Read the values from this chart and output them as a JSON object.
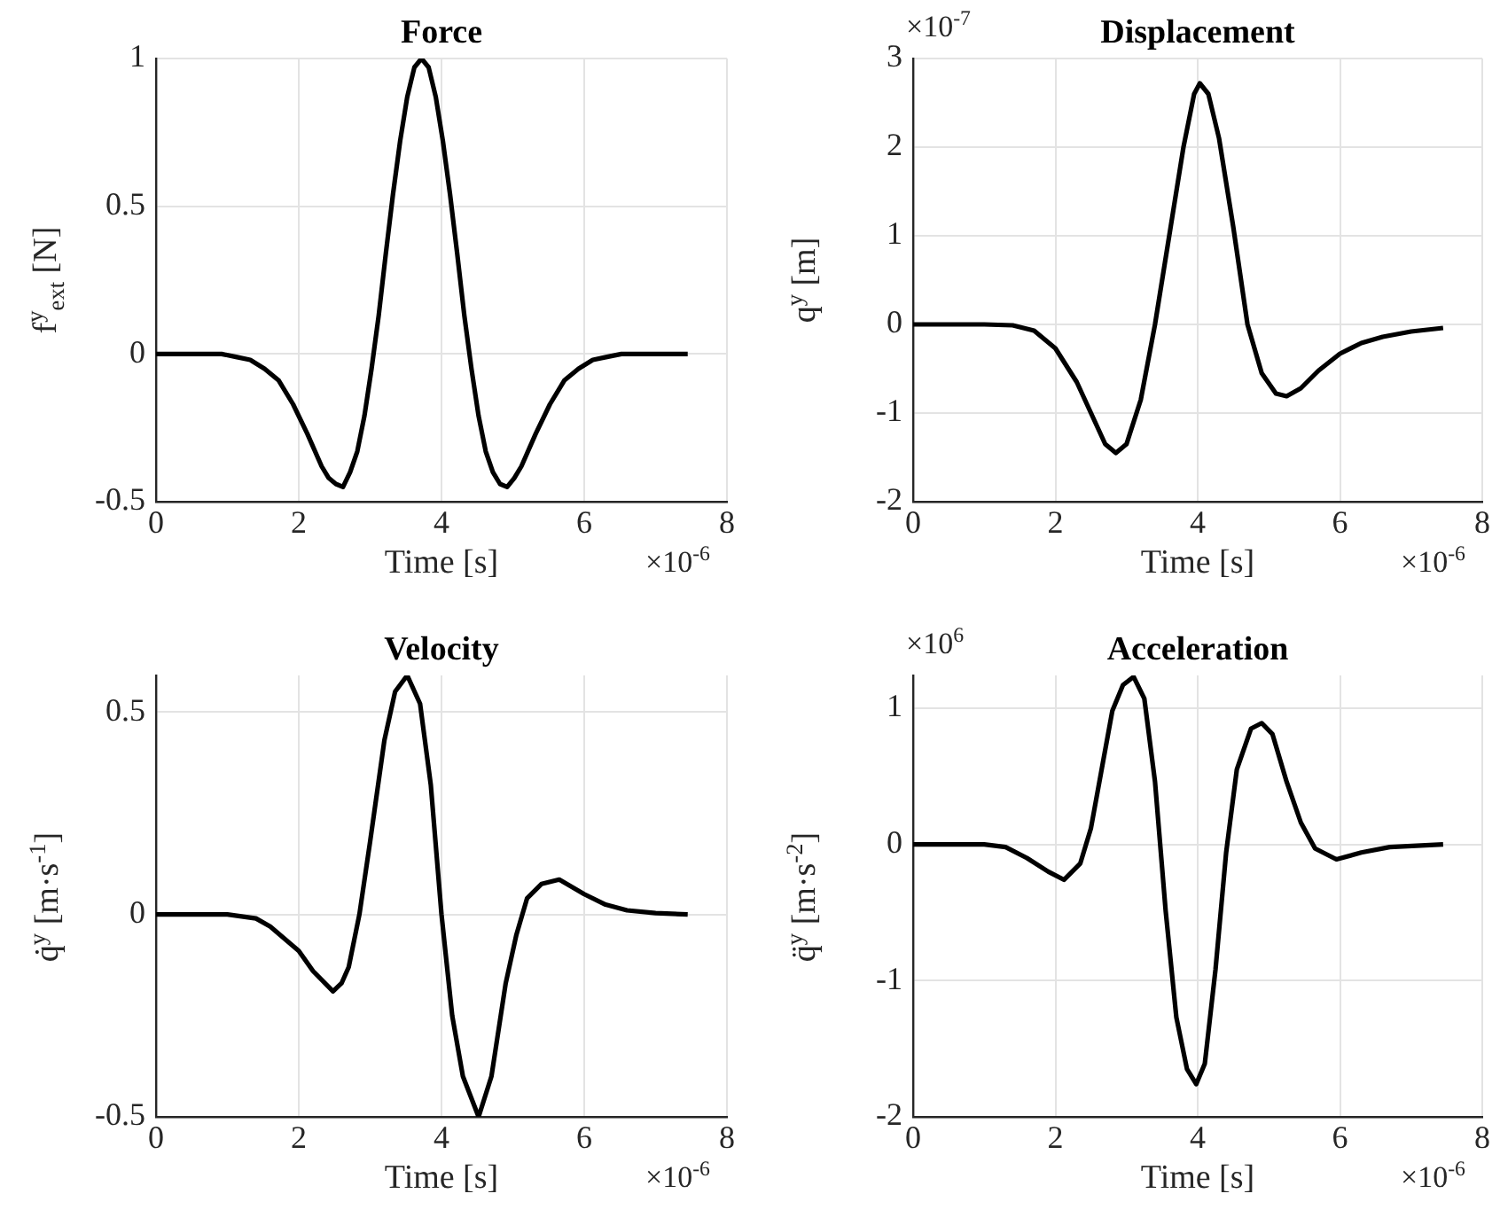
{
  "chart_data": [
    {
      "type": "line",
      "title": "Force",
      "xlabel": "Time [s]",
      "ylabel": "f$^{y}$$_{ext}$ [N]",
      "color": "#000000",
      "grid": true,
      "x": [
        0,
        0.5,
        0.92,
        1.12,
        1.32,
        1.52,
        1.72,
        1.92,
        2.12,
        2.32,
        2.42,
        2.52,
        2.62,
        2.72,
        2.82,
        2.92,
        3.02,
        3.12,
        3.22,
        3.32,
        3.42,
        3.52,
        3.62,
        3.72,
        3.82,
        3.92,
        4.02,
        4.12,
        4.22,
        4.32,
        4.42,
        4.52,
        4.62,
        4.72,
        4.82,
        4.92,
        5.02,
        5.12,
        5.32,
        5.52,
        5.72,
        5.92,
        6.12,
        6.32,
        6.52,
        7.0,
        7.45
      ],
      "values": [
        0,
        0,
        0,
        -0.01,
        -0.02,
        -0.05,
        -0.09,
        -0.17,
        -0.27,
        -0.38,
        -0.42,
        -0.44,
        -0.45,
        -0.4,
        -0.33,
        -0.21,
        -0.05,
        0.13,
        0.34,
        0.54,
        0.72,
        0.87,
        0.97,
        1,
        0.97,
        0.87,
        0.72,
        0.54,
        0.34,
        0.13,
        -0.05,
        -0.21,
        -0.33,
        -0.4,
        -0.44,
        -0.45,
        -0.42,
        -0.38,
        -0.27,
        -0.17,
        -0.09,
        -0.05,
        -0.02,
        -0.01,
        0,
        0,
        0
      ],
      "xlim": [
        0,
        8
      ],
      "xticks": [
        0,
        2,
        4,
        6,
        8
      ],
      "ylim": [
        -0.5,
        1
      ],
      "yticks": [
        -0.5,
        0,
        0.5,
        1
      ],
      "annotations": [
        "×10$^{-6}$"
      ]
    },
    {
      "type": "line",
      "title": "Displacement",
      "xlabel": "Time [s]",
      "ylabel": "q$^{y}$ [m]",
      "color": "#000000",
      "grid": true,
      "x": [
        0,
        1.0,
        1.4,
        1.7,
        2.0,
        2.3,
        2.5,
        2.7,
        2.85,
        3.0,
        3.2,
        3.4,
        3.6,
        3.8,
        3.95,
        4.03,
        4.15,
        4.3,
        4.5,
        4.7,
        4.9,
        5.1,
        5.25,
        5.45,
        5.7,
        6.0,
        6.3,
        6.6,
        7.0,
        7.45
      ],
      "values": [
        0,
        0,
        -0.01,
        -0.07,
        -0.27,
        -0.65,
        -1.0,
        -1.35,
        -1.45,
        -1.35,
        -0.85,
        0,
        1.0,
        2.0,
        2.6,
        2.72,
        2.6,
        2.1,
        1.1,
        0,
        -0.55,
        -0.78,
        -0.81,
        -0.72,
        -0.52,
        -0.33,
        -0.21,
        -0.14,
        -0.08,
        -0.04
      ],
      "xlim": [
        0,
        8
      ],
      "xticks": [
        0,
        2,
        4,
        6,
        8
      ],
      "ylim": [
        -2,
        3
      ],
      "yticks": [
        -2,
        -1,
        0,
        1,
        2,
        3
      ],
      "annotations": [
        "×10$^{-6}$",
        "×10$^{-7}$"
      ]
    },
    {
      "type": "line",
      "title": "Velocity",
      "xlabel": "Time [s]",
      "ylabel": "q̇$^{y}$ [m·s$^{-1}$]",
      "color": "#000000",
      "grid": true,
      "x": [
        0,
        1.0,
        1.4,
        1.6,
        1.8,
        2.0,
        2.2,
        2.48,
        2.6,
        2.7,
        2.85,
        3.0,
        3.2,
        3.35,
        3.52,
        3.7,
        3.85,
        4.0,
        4.15,
        4.3,
        4.52,
        4.7,
        4.9,
        5.05,
        5.2,
        5.4,
        5.65,
        6.0,
        6.3,
        6.6,
        7.0,
        7.45
      ],
      "values": [
        0,
        0,
        -0.01,
        -0.03,
        -0.06,
        -0.09,
        -0.14,
        -0.19,
        -0.17,
        -0.13,
        0,
        0.18,
        0.43,
        0.55,
        0.59,
        0.52,
        0.32,
        0,
        -0.25,
        -0.4,
        -0.5,
        -0.4,
        -0.17,
        -0.05,
        0.04,
        0.075,
        0.086,
        0.05,
        0.024,
        0.01,
        0.003,
        0
      ],
      "xlim": [
        0,
        8
      ],
      "xticks": [
        0,
        2,
        4,
        6,
        8
      ],
      "ylim": [
        -0.5,
        0.59
      ],
      "yticks": [
        -0.5,
        0,
        0.5
      ],
      "annotations": [
        "×10$^{-6}$"
      ]
    },
    {
      "type": "line",
      "title": "Acceleration",
      "xlabel": "Time [s]",
      "ylabel": "q̈$^{y}$ [m·s$^{-2}$]",
      "color": "#000000",
      "grid": true,
      "x": [
        0,
        1.0,
        1.3,
        1.6,
        1.9,
        2.12,
        2.35,
        2.5,
        2.65,
        2.8,
        2.95,
        3.1,
        3.25,
        3.4,
        3.55,
        3.7,
        3.85,
        3.98,
        4.1,
        4.25,
        4.4,
        4.55,
        4.75,
        4.9,
        5.05,
        5.25,
        5.45,
        5.65,
        5.95,
        6.3,
        6.7,
        7.45
      ],
      "values": [
        0,
        0,
        -0.02,
        -0.1,
        -0.2,
        -0.26,
        -0.14,
        0.12,
        0.55,
        0.98,
        1.17,
        1.23,
        1.07,
        0.46,
        -0.49,
        -1.27,
        -1.65,
        -1.76,
        -1.61,
        -0.92,
        -0.06,
        0.55,
        0.85,
        0.89,
        0.81,
        0.46,
        0.16,
        -0.03,
        -0.11,
        -0.06,
        -0.02,
        0
      ],
      "xlim": [
        0,
        8
      ],
      "xticks": [
        0,
        2,
        4,
        6,
        8
      ],
      "ylim": [
        -2,
        1.24
      ],
      "yticks": [
        -2,
        -1,
        0,
        1
      ],
      "annotations": [
        "×10$^{-6}$",
        "×10$^{6}$"
      ]
    }
  ]
}
